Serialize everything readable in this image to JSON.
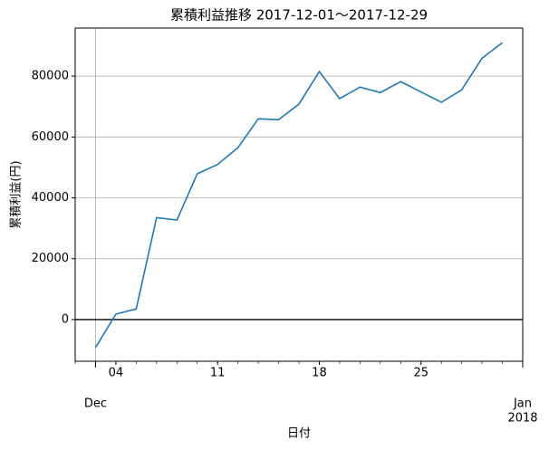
{
  "chart_data": {
    "type": "line",
    "title": "累積利益推移  2017-12-01～2017-12-29",
    "x_label": "日付",
    "y_label": "累積利益(円)",
    "x": [
      0,
      1,
      2,
      3,
      4,
      5,
      6,
      7,
      8,
      9,
      10,
      11,
      12,
      13,
      14,
      15,
      16,
      17,
      18,
      19,
      20
    ],
    "series": [
      {
        "name": "累積利益",
        "color": "#1f77b4",
        "values": [
          -9200,
          1800,
          3500,
          33500,
          32700,
          47900,
          51000,
          56500,
          66000,
          65700,
          70800,
          81500,
          72600,
          76400,
          74600,
          78200,
          74800,
          71400,
          75500,
          85900,
          91000
        ]
      }
    ],
    "xlim": [
      -1,
      21
    ],
    "xticks": [
      {
        "value": 0,
        "label": "Dec"
      },
      {
        "value": 1,
        "label": "04"
      },
      {
        "value": 6,
        "label": "11"
      },
      {
        "value": 11,
        "label": "18"
      },
      {
        "value": 16,
        "label": "25"
      },
      {
        "value": 21,
        "label": "Jan",
        "year": "2018"
      }
    ],
    "major_xticks": [
      0,
      5
    ],
    "ylim": [
      -13700,
      95800
    ],
    "yticks": [
      0,
      20000,
      40000,
      60000,
      80000
    ],
    "hline": 0,
    "grid": true
  }
}
